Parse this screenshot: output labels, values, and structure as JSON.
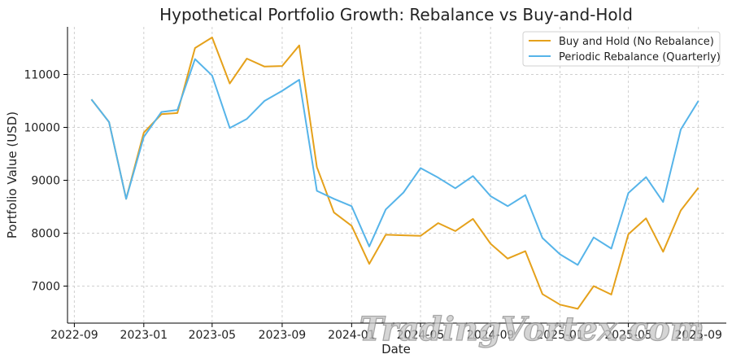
{
  "chart_data": {
    "type": "line",
    "title": "Hypothetical Portfolio Growth: Rebalance vs Buy-and-Hold",
    "xlabel": "Date",
    "ylabel": "Portfolio Value (USD)",
    "x_ticks": [
      "2022-09",
      "2023-01",
      "2023-05",
      "2023-09",
      "2024-01",
      "2024-05",
      "2024-09",
      "2025-01",
      "2025-05",
      "2025-09"
    ],
    "x": [
      "2022-10",
      "2022-11",
      "2022-12",
      "2023-01",
      "2023-02",
      "2023-03",
      "2023-04",
      "2023-05",
      "2023-06",
      "2023-07",
      "2023-08",
      "2023-09",
      "2023-10",
      "2023-11",
      "2023-12",
      "2024-01",
      "2024-02",
      "2024-03",
      "2024-04",
      "2024-05",
      "2024-06",
      "2024-07",
      "2024-08",
      "2024-09",
      "2024-10",
      "2024-11",
      "2024-12",
      "2025-01",
      "2025-02",
      "2025-03",
      "2025-04",
      "2025-05",
      "2025-06",
      "2025-07",
      "2025-08",
      "2025-09"
    ],
    "xlim": [
      "2022-08-20",
      "2025-10-20"
    ],
    "y_ticks": [
      7000,
      8000,
      9000,
      10000,
      11000
    ],
    "ylim": [
      6300,
      11900
    ],
    "grid": true,
    "legend_position": "top-right",
    "series": [
      {
        "name": "Buy and Hold (No Rebalance)",
        "color": "#E5A11B",
        "values": [
          10530,
          10100,
          8650,
          9900,
          10250,
          10270,
          11500,
          11700,
          10830,
          11300,
          11150,
          11160,
          11550,
          9250,
          8390,
          8140,
          7420,
          7970,
          7960,
          7950,
          8190,
          8040,
          8270,
          7800,
          7520,
          7660,
          6850,
          6650,
          6570,
          7000,
          6840,
          7980,
          8280,
          7650,
          8430,
          8860
        ]
      },
      {
        "name": "Periodic Rebalance (Quarterly)",
        "color": "#56B4E9",
        "values": [
          10530,
          10100,
          8650,
          9820,
          10290,
          10330,
          11290,
          10980,
          9990,
          10160,
          10500,
          10690,
          10900,
          8800,
          8650,
          8510,
          7750,
          8450,
          8770,
          9230,
          9050,
          8850,
          9080,
          8700,
          8510,
          8720,
          7910,
          7600,
          7400,
          7920,
          7710,
          8760,
          9060,
          8590,
          9960,
          10500
        ]
      }
    ]
  },
  "watermark_text": "TradingVortex.com"
}
